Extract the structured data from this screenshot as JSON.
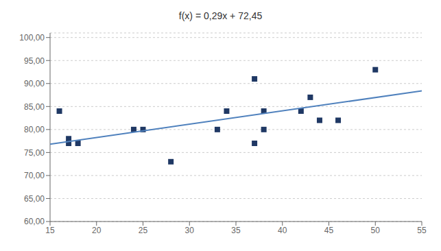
{
  "chart_data": {
    "type": "scatter",
    "title": "f(x) = 0,29x + 72,45",
    "series": [
      {
        "type": "scatter",
        "color": "#1F3864",
        "marker": "square",
        "x": [
          16,
          17,
          17,
          18,
          24,
          25,
          28,
          33,
          34,
          37,
          37,
          38,
          38,
          42,
          43,
          44,
          46,
          50
        ],
        "values": [
          84,
          78,
          77,
          77,
          80,
          80,
          73,
          80,
          84,
          91,
          77,
          84,
          80,
          84,
          87,
          82,
          82,
          93
        ]
      },
      {
        "type": "line",
        "color": "#4F81BD",
        "x": [
          15,
          55
        ],
        "values": [
          76.8,
          88.4
        ]
      }
    ],
    "xlim": [
      15,
      55
    ],
    "ylim": [
      60,
      101
    ],
    "xticks": [
      15,
      20,
      25,
      30,
      35,
      40,
      45,
      50,
      55
    ],
    "yticks": [
      {
        "value": 60,
        "label": "60,00"
      },
      {
        "value": 65,
        "label": "65,00"
      },
      {
        "value": 70,
        "label": "70,00"
      },
      {
        "value": 75,
        "label": "75,00"
      },
      {
        "value": 80,
        "label": "80,00"
      },
      {
        "value": 85,
        "label": "85,00"
      },
      {
        "value": 90,
        "label": "90,00"
      },
      {
        "value": 95,
        "label": "95,00"
      },
      {
        "value": 100,
        "label": "100,00"
      }
    ],
    "grid": "y"
  }
}
